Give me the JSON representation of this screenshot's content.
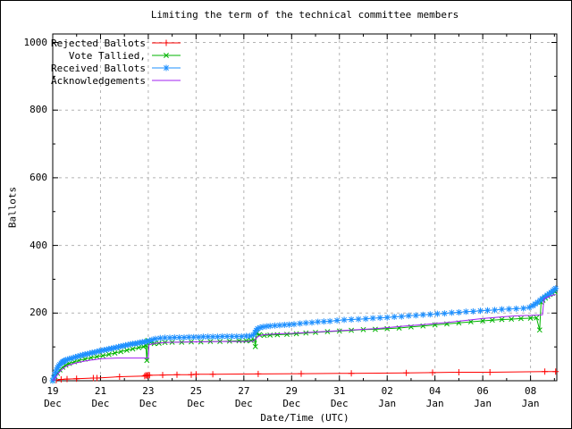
{
  "chart_data": {
    "type": "line",
    "title": "Limiting the term of the technical committee members",
    "xlabel": "Date/Time (UTC)",
    "ylabel": "Ballots",
    "grid": true,
    "grid_color": "#b3b3b3",
    "legend_position": "top-left",
    "x_axis": {
      "unit": "days since 19 Dec 00:00 UTC",
      "d_max": 21.1,
      "ticks": [
        {
          "d": 0,
          "day": "19",
          "mon": "Dec"
        },
        {
          "d": 2,
          "day": "21",
          "mon": "Dec"
        },
        {
          "d": 4,
          "day": "23",
          "mon": "Dec"
        },
        {
          "d": 6,
          "day": "25",
          "mon": "Dec"
        },
        {
          "d": 8,
          "day": "27",
          "mon": "Dec"
        },
        {
          "d": 10,
          "day": "29",
          "mon": "Dec"
        },
        {
          "d": 12,
          "day": "31",
          "mon": "Dec"
        },
        {
          "d": 14,
          "day": "02",
          "mon": "Jan"
        },
        {
          "d": 16,
          "day": "04",
          "mon": "Jan"
        },
        {
          "d": 18,
          "day": "06",
          "mon": "Jan"
        },
        {
          "d": 20,
          "day": "08",
          "mon": "Jan"
        }
      ],
      "minor_d": [
        1,
        3,
        5,
        7,
        9,
        11,
        13,
        15,
        17,
        19,
        21
      ]
    },
    "y_axis": {
      "v_max": 1000,
      "ticks": [
        {
          "v": 0,
          "label": "0"
        },
        {
          "v": 200,
          "label": "200"
        },
        {
          "v": 400,
          "label": "400"
        },
        {
          "v": 600,
          "label": "600"
        },
        {
          "v": 800,
          "label": "800"
        },
        {
          "v": 1000,
          "label": "1000"
        }
      ],
      "minor_v": [
        100,
        300,
        500,
        700,
        900
      ]
    },
    "series": [
      {
        "name": "Rejected Ballots",
        "color": "#ff0000",
        "marker": "plus",
        "points": [
          [
            0,
            0
          ],
          [
            0.15,
            2
          ],
          [
            0.35,
            4
          ],
          [
            0.6,
            5
          ],
          [
            1.0,
            6
          ],
          [
            1.7,
            8
          ],
          [
            1.85,
            8
          ],
          [
            2.8,
            12
          ],
          [
            3.85,
            14
          ],
          [
            3.9,
            16
          ],
          [
            3.95,
            15
          ],
          [
            4.0,
            17
          ],
          [
            4.05,
            16
          ],
          [
            4.6,
            17
          ],
          [
            5.2,
            18
          ],
          [
            5.8,
            18
          ],
          [
            6.0,
            19
          ],
          [
            6.7,
            19
          ],
          [
            8.6,
            20
          ],
          [
            10.4,
            21
          ],
          [
            12.5,
            22
          ],
          [
            14.8,
            23
          ],
          [
            15.9,
            24
          ],
          [
            17.0,
            25
          ],
          [
            18.3,
            25
          ],
          [
            20.6,
            27
          ],
          [
            21.05,
            27
          ]
        ]
      },
      {
        "name": "Vote Tallied,",
        "color": "#00b400",
        "marker": "cross",
        "points": [
          [
            0,
            0
          ],
          [
            0.1,
            12
          ],
          [
            0.2,
            22
          ],
          [
            0.3,
            32
          ],
          [
            0.42,
            40
          ],
          [
            0.55,
            46
          ],
          [
            0.7,
            51
          ],
          [
            0.9,
            56
          ],
          [
            1.1,
            60
          ],
          [
            1.35,
            64
          ],
          [
            1.6,
            68
          ],
          [
            1.85,
            71
          ],
          [
            2.1,
            74
          ],
          [
            2.35,
            78
          ],
          [
            2.6,
            82
          ],
          [
            2.85,
            86
          ],
          [
            3.1,
            90
          ],
          [
            3.35,
            94
          ],
          [
            3.6,
            98
          ],
          [
            3.8,
            101
          ],
          [
            3.9,
            104
          ],
          [
            3.94,
            60
          ],
          [
            3.98,
            119
          ],
          [
            4.1,
            113
          ],
          [
            4.25,
            110
          ],
          [
            4.45,
            111
          ],
          [
            4.7,
            113
          ],
          [
            5.0,
            114
          ],
          [
            5.4,
            114
          ],
          [
            5.8,
            115
          ],
          [
            6.2,
            115
          ],
          [
            6.6,
            116
          ],
          [
            7.0,
            116
          ],
          [
            7.4,
            117
          ],
          [
            7.8,
            118
          ],
          [
            8.1,
            118
          ],
          [
            8.3,
            119
          ],
          [
            8.44,
            121
          ],
          [
            8.48,
            101
          ],
          [
            8.53,
            140
          ],
          [
            8.65,
            136
          ],
          [
            8.85,
            134
          ],
          [
            9.1,
            135
          ],
          [
            9.4,
            136
          ],
          [
            9.8,
            137
          ],
          [
            10.2,
            139
          ],
          [
            10.6,
            141
          ],
          [
            11.0,
            143
          ],
          [
            11.5,
            145
          ],
          [
            12.0,
            147
          ],
          [
            12.5,
            149
          ],
          [
            13.0,
            151
          ],
          [
            13.5,
            152
          ],
          [
            14.0,
            154
          ],
          [
            14.5,
            156
          ],
          [
            15.0,
            159
          ],
          [
            15.5,
            162
          ],
          [
            16.0,
            165
          ],
          [
            16.5,
            168
          ],
          [
            17.0,
            171
          ],
          [
            17.5,
            174
          ],
          [
            18.0,
            177
          ],
          [
            18.4,
            179
          ],
          [
            18.8,
            181
          ],
          [
            19.2,
            182
          ],
          [
            19.6,
            184
          ],
          [
            20.0,
            185
          ],
          [
            20.25,
            186
          ],
          [
            20.38,
            150
          ],
          [
            20.44,
            232
          ],
          [
            20.52,
            238
          ],
          [
            20.62,
            244
          ],
          [
            20.72,
            250
          ],
          [
            20.82,
            255
          ],
          [
            20.92,
            259
          ],
          [
            21.02,
            263
          ]
        ]
      },
      {
        "name": "Received Ballots",
        "color": "#1e90ff",
        "marker": "star",
        "points": [
          [
            0,
            0
          ],
          [
            0.04,
            8
          ],
          [
            0.08,
            16
          ],
          [
            0.12,
            25
          ],
          [
            0.16,
            32
          ],
          [
            0.2,
            38
          ],
          [
            0.25,
            44
          ],
          [
            0.3,
            48
          ],
          [
            0.35,
            52
          ],
          [
            0.4,
            55
          ],
          [
            0.45,
            57
          ],
          [
            0.5,
            59
          ],
          [
            0.55,
            61
          ],
          [
            0.62,
            63
          ],
          [
            0.7,
            65
          ],
          [
            0.78,
            66
          ],
          [
            0.86,
            68
          ],
          [
            0.95,
            70
          ],
          [
            1.05,
            72
          ],
          [
            1.15,
            74
          ],
          [
            1.25,
            76
          ],
          [
            1.35,
            78
          ],
          [
            1.45,
            79
          ],
          [
            1.55,
            81
          ],
          [
            1.65,
            83
          ],
          [
            1.75,
            84
          ],
          [
            1.85,
            86
          ],
          [
            1.95,
            88
          ],
          [
            2.05,
            89
          ],
          [
            2.15,
            91
          ],
          [
            2.25,
            92
          ],
          [
            2.35,
            94
          ],
          [
            2.45,
            95
          ],
          [
            2.55,
            97
          ],
          [
            2.65,
            98
          ],
          [
            2.75,
            100
          ],
          [
            2.85,
            102
          ],
          [
            2.95,
            103
          ],
          [
            3.05,
            105
          ],
          [
            3.15,
            106
          ],
          [
            3.25,
            108
          ],
          [
            3.35,
            109
          ],
          [
            3.45,
            110
          ],
          [
            3.55,
            111
          ],
          [
            3.65,
            113
          ],
          [
            3.75,
            114
          ],
          [
            3.85,
            115
          ],
          [
            3.95,
            116
          ],
          [
            4.05,
            118
          ],
          [
            4.15,
            121
          ],
          [
            4.3,
            124
          ],
          [
            4.5,
            126
          ],
          [
            4.7,
            127
          ],
          [
            4.9,
            127
          ],
          [
            5.1,
            128
          ],
          [
            5.3,
            128
          ],
          [
            5.5,
            128
          ],
          [
            5.7,
            129
          ],
          [
            5.9,
            129
          ],
          [
            6.1,
            129
          ],
          [
            6.3,
            130
          ],
          [
            6.5,
            130
          ],
          [
            6.7,
            130
          ],
          [
            6.9,
            130
          ],
          [
            7.1,
            131
          ],
          [
            7.3,
            131
          ],
          [
            7.5,
            131
          ],
          [
            7.7,
            131
          ],
          [
            7.9,
            131
          ],
          [
            8.1,
            132
          ],
          [
            8.25,
            132
          ],
          [
            8.4,
            135
          ],
          [
            8.47,
            143
          ],
          [
            8.52,
            149
          ],
          [
            8.58,
            154
          ],
          [
            8.68,
            157
          ],
          [
            8.8,
            159
          ],
          [
            8.95,
            161
          ],
          [
            9.1,
            162
          ],
          [
            9.3,
            163
          ],
          [
            9.5,
            164
          ],
          [
            9.7,
            165
          ],
          [
            9.9,
            166
          ],
          [
            10.1,
            167
          ],
          [
            10.35,
            169
          ],
          [
            10.6,
            171
          ],
          [
            10.85,
            172
          ],
          [
            11.1,
            174
          ],
          [
            11.35,
            175
          ],
          [
            11.6,
            176
          ],
          [
            11.9,
            178
          ],
          [
            12.2,
            180
          ],
          [
            12.5,
            181
          ],
          [
            12.8,
            182
          ],
          [
            13.1,
            183
          ],
          [
            13.4,
            185
          ],
          [
            13.7,
            186
          ],
          [
            14.0,
            187
          ],
          [
            14.3,
            189
          ],
          [
            14.6,
            190
          ],
          [
            14.9,
            192
          ],
          [
            15.2,
            193
          ],
          [
            15.5,
            195
          ],
          [
            15.8,
            196
          ],
          [
            16.1,
            198
          ],
          [
            16.4,
            199
          ],
          [
            16.7,
            201
          ],
          [
            17.0,
            202
          ],
          [
            17.3,
            204
          ],
          [
            17.6,
            205
          ],
          [
            17.9,
            207
          ],
          [
            18.2,
            208
          ],
          [
            18.5,
            209
          ],
          [
            18.8,
            211
          ],
          [
            19.1,
            212
          ],
          [
            19.4,
            213
          ],
          [
            19.7,
            214
          ],
          [
            19.95,
            217
          ],
          [
            20.1,
            222
          ],
          [
            20.2,
            227
          ],
          [
            20.3,
            232
          ],
          [
            20.4,
            238
          ],
          [
            20.5,
            243
          ],
          [
            20.6,
            248
          ],
          [
            20.7,
            253
          ],
          [
            20.78,
            257
          ],
          [
            20.86,
            261
          ],
          [
            20.94,
            266
          ],
          [
            21.0,
            270
          ],
          [
            21.05,
            273
          ]
        ]
      },
      {
        "name": "Acknowledgements",
        "color": "#a020f0",
        "marker": "none",
        "points": [
          [
            0,
            0
          ],
          [
            0.1,
            9
          ],
          [
            0.2,
            18
          ],
          [
            0.3,
            27
          ],
          [
            0.4,
            34
          ],
          [
            0.5,
            40
          ],
          [
            0.6,
            44
          ],
          [
            0.8,
            49
          ],
          [
            1.0,
            53
          ],
          [
            1.2,
            56
          ],
          [
            1.4,
            59
          ],
          [
            1.6,
            61
          ],
          [
            1.8,
            63
          ],
          [
            2.0,
            65
          ],
          [
            2.3,
            66
          ],
          [
            2.7,
            67
          ],
          [
            4.0,
            67
          ],
          [
            4.03,
            106
          ],
          [
            4.3,
            111
          ],
          [
            4.7,
            113
          ],
          [
            5.2,
            114
          ],
          [
            6.0,
            115
          ],
          [
            7.0,
            116
          ],
          [
            8.0,
            116
          ],
          [
            8.4,
            117
          ],
          [
            8.5,
            124
          ],
          [
            8.6,
            131
          ],
          [
            8.75,
            135
          ],
          [
            9.0,
            137
          ],
          [
            9.5,
            139
          ],
          [
            10.0,
            140
          ],
          [
            10.5,
            142
          ],
          [
            11.0,
            144
          ],
          [
            11.5,
            146
          ],
          [
            12.0,
            148
          ],
          [
            12.5,
            150
          ],
          [
            13.0,
            152
          ],
          [
            13.5,
            154
          ],
          [
            14.0,
            157
          ],
          [
            14.5,
            160
          ],
          [
            15.0,
            163
          ],
          [
            15.5,
            166
          ],
          [
            16.0,
            169
          ],
          [
            16.5,
            172
          ],
          [
            17.0,
            176
          ],
          [
            17.5,
            180
          ],
          [
            18.0,
            184
          ],
          [
            18.5,
            187
          ],
          [
            19.0,
            190
          ],
          [
            19.5,
            192
          ],
          [
            20.0,
            193
          ],
          [
            20.5,
            195
          ],
          [
            20.56,
            242
          ],
          [
            20.7,
            247
          ],
          [
            20.85,
            251
          ],
          [
            21.05,
            255
          ]
        ]
      }
    ]
  }
}
